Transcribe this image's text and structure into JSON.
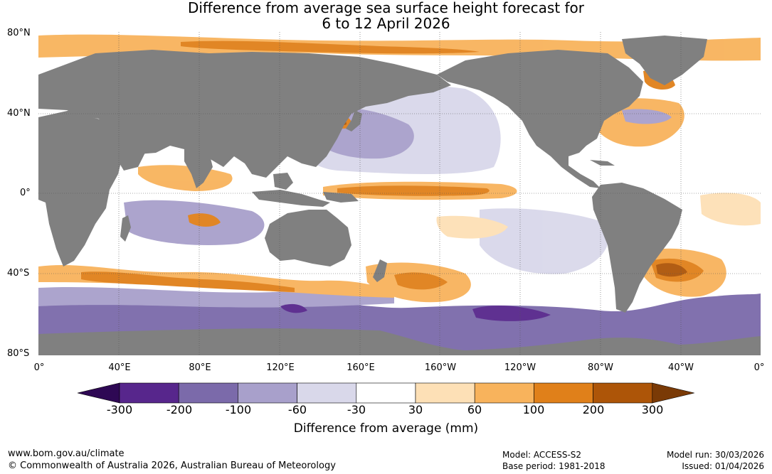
{
  "title": {
    "line1": "Difference from average sea surface height forecast for",
    "line2": "6 to 12 April 2026"
  },
  "latitude_labels": [
    "80°N",
    "40°N",
    "0°",
    "40°S",
    "80°S"
  ],
  "longitude_labels": [
    "0°",
    "40°E",
    "80°E",
    "120°E",
    "160°E",
    "160°W",
    "120°W",
    "80°W",
    "40°W",
    "0°"
  ],
  "colorbar": {
    "ticks": [
      "-300",
      "-200",
      "-100",
      "-60",
      "-30",
      "30",
      "60",
      "100",
      "200",
      "300"
    ],
    "colors": [
      "#2e0854",
      "#57268c",
      "#7b6aaa",
      "#a8a0cb",
      "#d9d8ea",
      "#ffffff",
      "#fde0b6",
      "#f8b35c",
      "#e0801a",
      "#ad5508",
      "#7a3a06"
    ],
    "title": "Difference from average (mm)"
  },
  "map_colors": {
    "land": "#808080",
    "ocean": "#ffffff",
    "grid": "#555555"
  },
  "footer": {
    "website": "www.bom.gov.au/climate",
    "copyright": "© Commonwealth of Australia 2026, Australian Bureau of Meteorology",
    "model": "Model: ACCESS-S2",
    "base_period": "Base period: 1981-2018",
    "model_run": "Model run: 30/03/2026",
    "issued": "Issued: 01/04/2026"
  }
}
